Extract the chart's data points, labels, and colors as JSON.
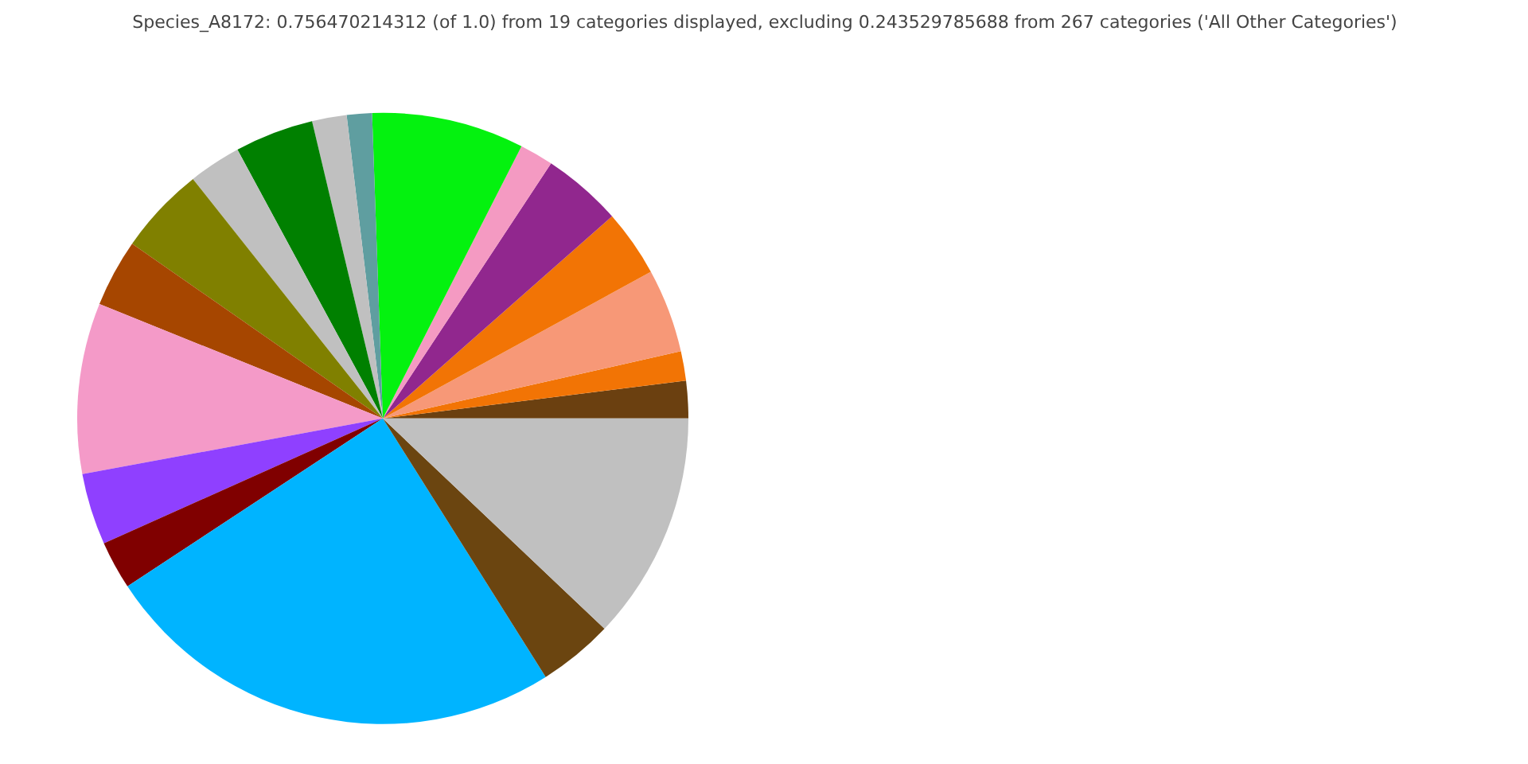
{
  "chart_data": {
    "type": "pie",
    "title": "Species_A8172: 0.756470214312 (of 1.0) from 19 categories displayed, excluding 0.243529785688 from 267 categories ('All Other Categories')",
    "categories": [
      null,
      null,
      null,
      null,
      null,
      null,
      null,
      null,
      null,
      null,
      null,
      null,
      null,
      null,
      null,
      null,
      null,
      null,
      null
    ],
    "values": [
      1.97,
      1.56,
      4.44,
      3.53,
      4.22,
      1.78,
      8.06,
      1.33,
      1.83,
      4.17,
      2.78,
      4.64,
      3.58,
      9.03,
      3.78,
      2.56,
      24.69,
      3.97,
      12.08
    ],
    "colors": [
      "#6b4010",
      "#f27405",
      "#f79877",
      "#f27405",
      "#91278e",
      "#f49ac2",
      "#04f20f",
      "#5f9ea0",
      "#c0c0c0",
      "#008000",
      "#c0c0c0",
      "#808000",
      "#a64600",
      "#f49ac8",
      "#8f40ff",
      "#800000",
      "#00b4ff",
      "#6b4510",
      "#c0c0c0"
    ]
  }
}
